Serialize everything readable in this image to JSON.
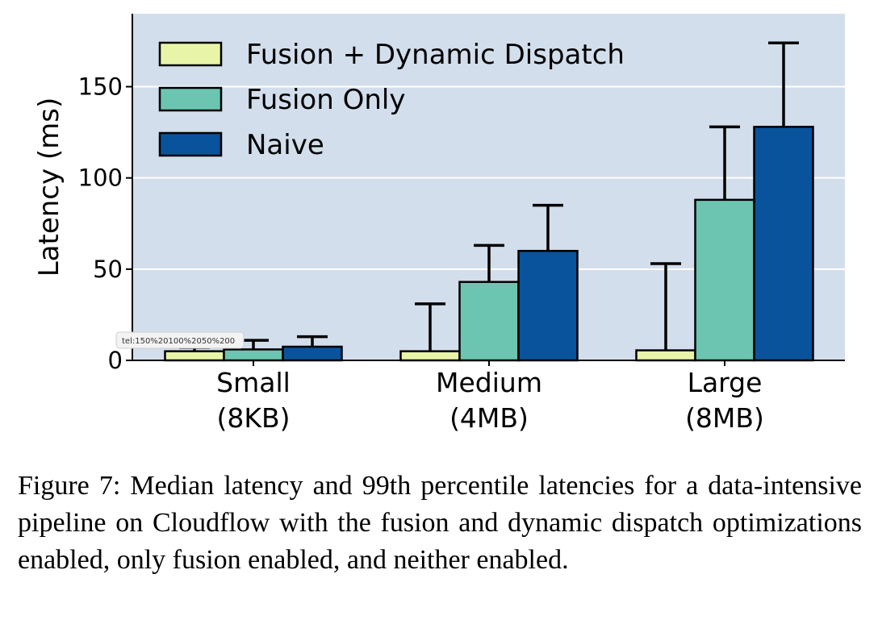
{
  "chart_data": {
    "type": "bar",
    "categories": [
      [
        "Small",
        "(8KB)"
      ],
      [
        "Medium",
        "(4MB)"
      ],
      [
        "Large",
        "(8MB)"
      ]
    ],
    "series": [
      {
        "name": "Fusion + Dynamic Dispatch",
        "color": "#e8f5a8",
        "values": [
          5,
          5,
          5.5
        ],
        "p99": [
          7,
          31,
          53
        ]
      },
      {
        "name": "Fusion Only",
        "color": "#6bc5b0",
        "values": [
          6,
          43,
          88
        ],
        "p99": [
          11,
          63,
          128
        ]
      },
      {
        "name": "Naive",
        "color": "#08539c",
        "values": [
          7.5,
          60,
          128
        ],
        "p99": [
          13,
          85,
          174
        ]
      }
    ],
    "ylabel": "Latency (ms)",
    "ylim": [
      0,
      190
    ],
    "yticks": [
      0,
      50,
      100,
      150
    ],
    "grid": true,
    "legend_position": "top-left",
    "background": "#d3deec"
  },
  "tooltip": "tel:150%20100%2050%200",
  "caption": {
    "label": "Figure 7:",
    "text": "Median latency and 99th percentile latencies for a data-intensive pipeline on Cloudflow with the fusion and dynamic dispatch optimizations enabled, only fusion enabled, and neither enabled."
  }
}
